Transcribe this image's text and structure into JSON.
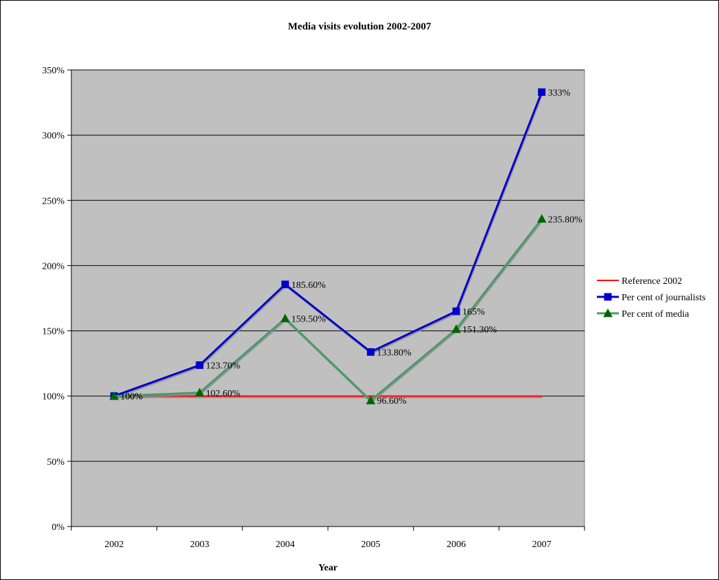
{
  "chart_data": {
    "type": "line",
    "title": "Media visits evolution 2002-2007",
    "xlabel": "Year",
    "ylabel": "",
    "categories": [
      "2002",
      "2003",
      "2004",
      "2005",
      "2006",
      "2007"
    ],
    "ylim": [
      0,
      350
    ],
    "yticks": [
      "0%",
      "50%",
      "100%",
      "150%",
      "200%",
      "250%",
      "300%",
      "350%"
    ],
    "grid": true,
    "legend_position": "right",
    "series": [
      {
        "name": "Reference 2002",
        "values": [
          100,
          100,
          100,
          100,
          100,
          100
        ],
        "color": "#ff0000",
        "marker": "none",
        "labels": [
          "",
          "",
          "",
          "",
          "",
          ""
        ]
      },
      {
        "name": "Per cent of journalists",
        "values": [
          100,
          123.7,
          185.6,
          133.8,
          165,
          333
        ],
        "color": "#0000cc",
        "marker": "square",
        "labels": [
          "100%",
          "123.70%",
          "185.60%",
          "133.80%",
          "165%",
          "333%"
        ]
      },
      {
        "name": "Per cent of media",
        "values": [
          100,
          102.6,
          159.5,
          96.6,
          151.3,
          235.8
        ],
        "color": "#4a9a6a",
        "marker_color": "#006600",
        "marker": "triangle",
        "labels": [
          "100%",
          "102.60%",
          "159.50%",
          "96.60%",
          "151.30%",
          "235.80%"
        ]
      }
    ],
    "colors": {
      "plot_background": "#c0c0c0",
      "gridline": "#000000",
      "border": "#000000"
    }
  }
}
